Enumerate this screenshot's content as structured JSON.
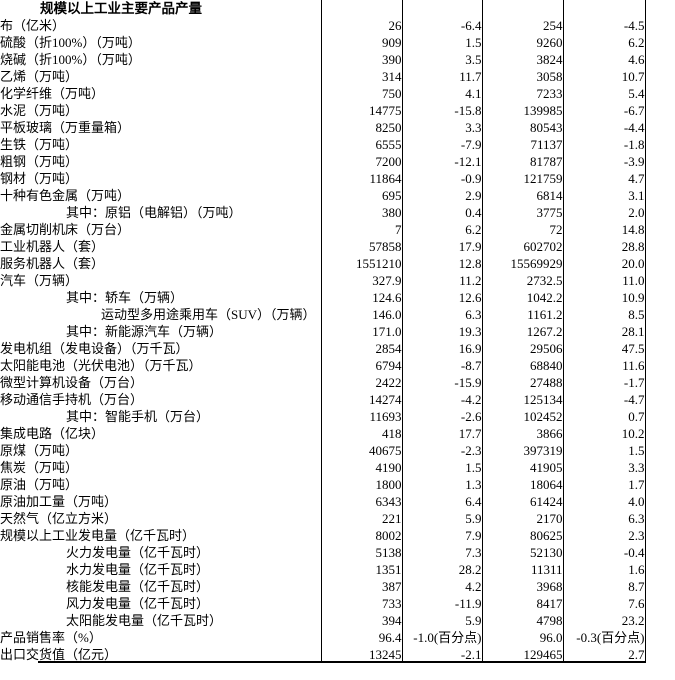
{
  "colors": {
    "background": "#ffffff",
    "text": "#000000",
    "border": "#000000"
  },
  "table": {
    "title": "规模以上工业主要产品产量",
    "rows": [
      {
        "name": "布（亿米）",
        "indent": 1,
        "values": [
          "26",
          "-6.4",
          "254",
          "-4.5"
        ]
      },
      {
        "name": "硫酸（折100%）（万吨）",
        "indent": 1,
        "values": [
          "909",
          "1.5",
          "9260",
          "6.2"
        ]
      },
      {
        "name": "烧碱（折100%）（万吨）",
        "indent": 1,
        "values": [
          "390",
          "3.5",
          "3824",
          "4.6"
        ]
      },
      {
        "name": "乙烯（万吨）",
        "indent": 1,
        "values": [
          "314",
          "11.7",
          "3058",
          "10.7"
        ]
      },
      {
        "name": "化学纤维（万吨）",
        "indent": 1,
        "values": [
          "750",
          "4.1",
          "7233",
          "5.4"
        ]
      },
      {
        "name": "水泥（万吨）",
        "indent": 1,
        "values": [
          "14775",
          "-15.8",
          "139985",
          "-6.7"
        ]
      },
      {
        "name": "平板玻璃（万重量箱）",
        "indent": 1,
        "values": [
          "8250",
          "3.3",
          "80543",
          "-4.4"
        ]
      },
      {
        "name": "生铁（万吨）",
        "indent": 1,
        "values": [
          "6555",
          "-7.9",
          "71137",
          "-1.8"
        ]
      },
      {
        "name": "粗钢（万吨）",
        "indent": 1,
        "values": [
          "7200",
          "-12.1",
          "81787",
          "-3.9"
        ]
      },
      {
        "name": "钢材（万吨）",
        "indent": 1,
        "values": [
          "11864",
          "-0.9",
          "121759",
          "4.7"
        ]
      },
      {
        "name": "十种有色金属（万吨）",
        "indent": 1,
        "values": [
          "695",
          "2.9",
          "6814",
          "3.1"
        ]
      },
      {
        "name": "其中：原铝（电解铝）（万吨）",
        "indent": 2,
        "values": [
          "380",
          "0.4",
          "3775",
          "2.0"
        ]
      },
      {
        "name": "金属切削机床（万台）",
        "indent": 1,
        "values": [
          "7",
          "6.2",
          "72",
          "14.8"
        ]
      },
      {
        "name": "工业机器人（套）",
        "indent": 1,
        "values": [
          "57858",
          "17.9",
          "602702",
          "28.8"
        ]
      },
      {
        "name": "服务机器人（套）",
        "indent": 1,
        "values": [
          "1551210",
          "12.8",
          "15569929",
          "20.0"
        ]
      },
      {
        "name": "汽车（万辆）",
        "indent": 1,
        "values": [
          "327.9",
          "11.2",
          "2732.5",
          "11.0"
        ]
      },
      {
        "name": "其中：轿车（万辆）",
        "indent": 2,
        "values": [
          "124.6",
          "12.6",
          "1042.2",
          "10.9"
        ]
      },
      {
        "name": "运动型多用途乘用车（SUV）（万辆）",
        "indent": 3,
        "values": [
          "146.0",
          "6.3",
          "1161.2",
          "8.5"
        ]
      },
      {
        "name": "其中：新能源汽车（万辆）",
        "indent": 2,
        "values": [
          "171.0",
          "19.3",
          "1267.2",
          "28.1"
        ]
      },
      {
        "name": "发电机组（发电设备）（万千瓦）",
        "indent": 1,
        "values": [
          "2854",
          "16.9",
          "29506",
          "47.5"
        ]
      },
      {
        "name": "太阳能电池（光伏电池）（万千瓦）",
        "indent": 1,
        "values": [
          "6794",
          "-8.7",
          "68840",
          "11.6"
        ]
      },
      {
        "name": "微型计算机设备（万台）",
        "indent": 1,
        "values": [
          "2422",
          "-15.9",
          "27488",
          "-1.7"
        ]
      },
      {
        "name": "移动通信手持机（万台）",
        "indent": 1,
        "values": [
          "14274",
          "-4.2",
          "125134",
          "-4.7"
        ]
      },
      {
        "name": "其中：智能手机（万台）",
        "indent": 2,
        "values": [
          "11693",
          "-2.6",
          "102452",
          "0.7"
        ]
      },
      {
        "name": "集成电路（亿块）",
        "indent": 1,
        "values": [
          "418",
          "17.7",
          "3866",
          "10.2"
        ]
      },
      {
        "name": "原煤（万吨）",
        "indent": 1,
        "values": [
          "40675",
          "-2.3",
          "397319",
          "1.5"
        ]
      },
      {
        "name": "焦炭（万吨）",
        "indent": 1,
        "values": [
          "4190",
          "1.5",
          "41905",
          "3.3"
        ]
      },
      {
        "name": "原油（万吨）",
        "indent": 1,
        "values": [
          "1800",
          "1.3",
          "18064",
          "1.7"
        ]
      },
      {
        "name": "原油加工量（万吨）",
        "indent": 1,
        "values": [
          "6343",
          "6.4",
          "61424",
          "4.0"
        ]
      },
      {
        "name": "天然气（亿立方米）",
        "indent": 1,
        "values": [
          "221",
          "5.9",
          "2170",
          "6.3"
        ]
      },
      {
        "name": "规模以上工业发电量（亿千瓦时）",
        "indent": 1,
        "values": [
          "8002",
          "7.9",
          "80625",
          "2.3"
        ]
      },
      {
        "name": "火力发电量（亿千瓦时）",
        "indent": 2,
        "values": [
          "5138",
          "7.3",
          "52130",
          "-0.4"
        ]
      },
      {
        "name": "水力发电量（亿千瓦时）",
        "indent": 2,
        "values": [
          "1351",
          "28.2",
          "11311",
          "1.6"
        ]
      },
      {
        "name": "核能发电量（亿千瓦时）",
        "indent": 2,
        "values": [
          "387",
          "4.2",
          "3968",
          "8.7"
        ]
      },
      {
        "name": "风力发电量（亿千瓦时）",
        "indent": 2,
        "values": [
          "733",
          "-11.9",
          "8417",
          "7.6"
        ]
      },
      {
        "name": "太阳能发电量（亿千瓦时）",
        "indent": 2,
        "values": [
          "394",
          "5.9",
          "4798",
          "23.2"
        ]
      },
      {
        "name": "产品销售率（%）",
        "indent": 1,
        "values": [
          "96.4",
          "-1.0(百分点)",
          "96.0",
          "-0.3(百分点)"
        ]
      },
      {
        "name": "出口交货值（亿元）",
        "indent": 1,
        "values": [
          "13245",
          "-2.1",
          "129465",
          "2.7"
        ]
      }
    ]
  }
}
